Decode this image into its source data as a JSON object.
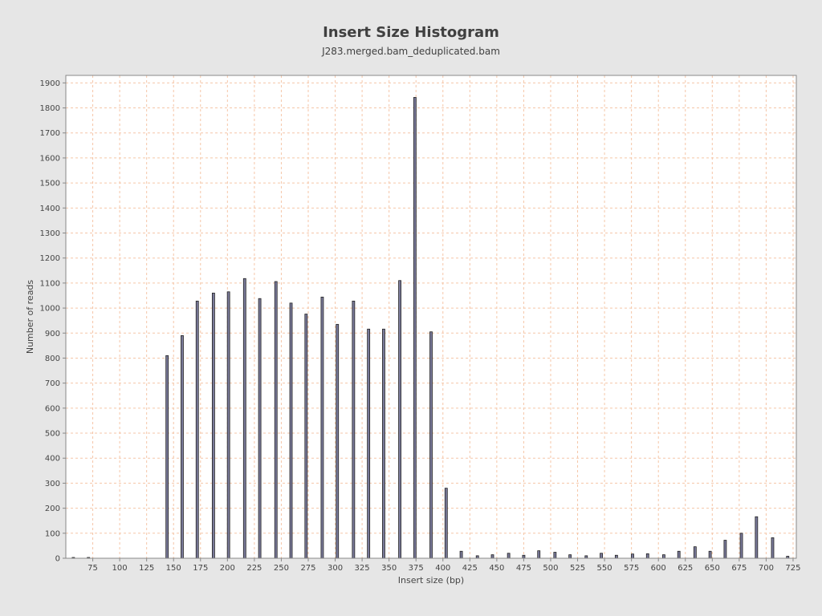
{
  "chart_data": {
    "type": "bar",
    "title": "Insert Size Histogram",
    "subtitle": "J283.merged.bam_deduplicated.bam",
    "xlabel": "Insert size (bp)",
    "ylabel": "Number of reads",
    "xlim": [
      50,
      728
    ],
    "ylim": [
      0,
      1930
    ],
    "xticks": [
      75,
      100,
      125,
      150,
      175,
      200,
      225,
      250,
      275,
      300,
      325,
      350,
      375,
      400,
      425,
      450,
      475,
      500,
      525,
      550,
      575,
      600,
      625,
      650,
      675,
      700,
      725
    ],
    "yticks": [
      0,
      100,
      200,
      300,
      400,
      500,
      600,
      700,
      800,
      900,
      1000,
      1100,
      1200,
      1300,
      1400,
      1500,
      1600,
      1700,
      1800,
      1900
    ],
    "grid": true,
    "x": [
      57,
      71,
      144,
      158,
      172,
      187,
      201,
      216,
      230,
      245,
      259,
      273,
      288,
      302,
      317,
      331,
      345,
      360,
      374,
      389,
      403,
      417,
      432,
      446,
      461,
      475,
      489,
      504,
      518,
      533,
      547,
      561,
      576,
      590,
      605,
      619,
      634,
      648,
      662,
      677,
      691,
      706,
      720
    ],
    "values": [
      3,
      1,
      810,
      890,
      1028,
      1060,
      1065,
      1118,
      1038,
      1106,
      1020,
      976,
      1044,
      935,
      1028,
      916,
      916,
      1110,
      1842,
      905,
      280,
      28,
      10,
      14,
      20,
      12,
      30,
      24,
      14,
      10,
      20,
      12,
      17,
      18,
      14,
      28,
      46,
      28,
      72,
      100,
      166,
      82,
      8
    ],
    "colors": {
      "plot_bg": "#ffffff",
      "page_bg": "#e6e6e6",
      "grid": "#f5c6a8",
      "bar_fill": "#7a7a9a",
      "bar_stroke": "#222222",
      "axis": "#888888",
      "text": "#404040"
    }
  }
}
